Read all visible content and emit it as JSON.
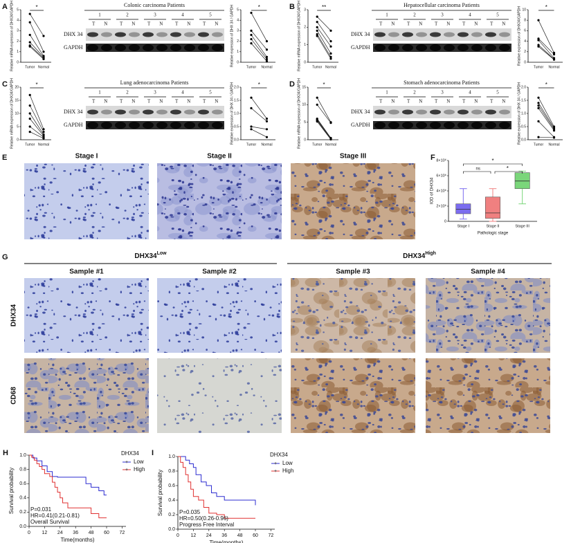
{
  "panels": [
    {
      "label": "A",
      "title": "Colonic carcinoma Patients",
      "lanes": [
        "1",
        "2",
        "3",
        "4",
        "5"
      ],
      "lane_labels": [
        "T",
        "N"
      ],
      "rows": [
        "DHX 34",
        "GAPDH"
      ],
      "plots": [
        {
          "ylabel": "Relative mRNA expression of DHX34/GAPDH",
          "groups": [
            "Tumor",
            "Normal"
          ],
          "sig": "*",
          "ylim": [
            0,
            5
          ],
          "yticks": [
            0,
            1,
            2,
            3,
            4,
            5
          ],
          "tumor": [
            4.6,
            3.8,
            2.6,
            1.9,
            1.6,
            1.5
          ],
          "normal": [
            2.5,
            1.0,
            0.6,
            0.5,
            0.4,
            0.3
          ]
        },
        {
          "ylabel": "Relative expression of DHX 34 / GAPDH",
          "groups": [
            "Tumor",
            "Normal"
          ],
          "sig": "*",
          "ylim": [
            0,
            5
          ],
          "yticks": [
            0,
            1,
            2,
            3,
            4,
            5
          ],
          "tumor": [
            4.7,
            3.0,
            2.6,
            2.2,
            1.8
          ],
          "normal": [
            2.0,
            1.2,
            0.5,
            0.3,
            0.1
          ]
        }
      ]
    },
    {
      "label": "B",
      "title": "Hepatocellular carcinoma Patients",
      "lanes": [
        "1",
        "2",
        "3",
        "4",
        "5"
      ],
      "lane_labels": [
        "T",
        "N"
      ],
      "rows": [
        "DHX 34",
        "GAPDH"
      ],
      "plots": [
        {
          "ylabel": "Relative mRNA expression of DHX34/GAPDH",
          "groups": [
            "Tumor",
            "Normal"
          ],
          "sig": "**",
          "ylim": [
            0,
            3
          ],
          "yticks": [
            0,
            1,
            2,
            3
          ],
          "tumor": [
            2.6,
            2.3,
            2.0,
            1.8,
            1.6,
            1.5
          ],
          "normal": [
            1.8,
            1.2,
            0.9,
            0.5,
            0.3,
            0.2
          ]
        },
        {
          "ylabel": "Relative expression of DHX34/GAPDH",
          "groups": [
            "Tumor",
            "Normal"
          ],
          "sig": "*",
          "ylim": [
            0,
            10
          ],
          "yticks": [
            0,
            2,
            4,
            6,
            8,
            10
          ],
          "tumor": [
            8,
            4.5,
            4.2,
            3.3,
            3
          ],
          "normal": [
            1.8,
            1.5,
            0.8,
            0.6,
            0.5
          ]
        }
      ]
    },
    {
      "label": "C",
      "title": "Lung adenocarcinoma Patients",
      "lanes": [
        "1",
        "2",
        "3",
        "4",
        "5"
      ],
      "lane_labels": [
        "T",
        "N"
      ],
      "rows": [
        "DHX 34",
        "GAPDH"
      ],
      "plots": [
        {
          "ylabel": "Relative mRNA expression of DHX34/GAPDH",
          "groups": [
            "Tumor",
            "Normal"
          ],
          "sig": "*",
          "ylim": [
            0,
            20
          ],
          "yticks": [
            0,
            5,
            10,
            15,
            20
          ],
          "tumor": [
            17,
            13,
            10,
            8,
            5,
            3
          ],
          "normal": [
            4,
            3,
            2,
            1.5,
            1,
            0.5
          ]
        },
        {
          "ylabel": "Relative expression of DHX 34 / GAPDH",
          "groups": [
            "Tumor",
            "Normal"
          ],
          "sig": "*",
          "ylim": [
            0,
            2
          ],
          "yticks": [
            {
              "value": 0,
              "label": "0.0"
            },
            {
              "value": 0.5,
              "label": "0.5"
            },
            {
              "value": 1,
              "label": "1.0"
            },
            {
              "value": 1.5,
              "label": "1.5"
            },
            {
              "value": 2,
              "label": "2.0"
            }
          ],
          "tumor": [
            1.6,
            1.2,
            0.5,
            0.4
          ],
          "normal": [
            0.8,
            0.7,
            0.4,
            0.1
          ]
        }
      ]
    },
    {
      "label": "D",
      "title": "Stomach adenocarcinoma Patients",
      "lanes": [
        "1",
        "2",
        "3",
        "4",
        "5"
      ],
      "lane_labels": [
        "T",
        "N"
      ],
      "rows": [
        "DHX 34",
        "GAPDH"
      ],
      "plots": [
        {
          "ylabel": "Relative mRNA expression of DHX34/GAPDH",
          "groups": [
            "Tumor",
            "Normal"
          ],
          "sig": "*",
          "ylim": [
            0,
            15
          ],
          "yticks": [
            0,
            5,
            10,
            15
          ],
          "tumor": [
            12,
            10,
            6,
            5.8,
            5.5,
            5.2
          ],
          "normal": [
            5,
            4.8,
            0.5,
            0.3,
            0.2,
            0.1
          ]
        },
        {
          "ylabel": "Relative expression of DHX 34 / GAPDH",
          "groups": [
            "Tumor",
            "Normal"
          ],
          "sig": "*",
          "ylim": [
            0,
            2
          ],
          "yticks": [
            {
              "value": 0,
              "label": "0.0"
            },
            {
              "value": 0.5,
              "label": "0.5"
            },
            {
              "value": 1,
              "label": "1.0"
            },
            {
              "value": 1.5,
              "label": "1.5"
            },
            {
              "value": 2,
              "label": "2.0"
            }
          ],
          "tumor": [
            1.6,
            1.4,
            1.3,
            1.2,
            0.7,
            0.1
          ],
          "normal": [
            0.5,
            0.45,
            0.4,
            0.35,
            0.1,
            0.08
          ]
        }
      ]
    }
  ],
  "histology": {
    "label": "E",
    "stages": [
      "Stage I",
      "Stage II",
      "Stage III"
    ]
  },
  "boxplot": {
    "label": "F",
    "type": "box",
    "ylabel": "IOD of DHX34",
    "xlabel": "Pathologic stage",
    "categories": [
      "Stage I",
      "Stage II",
      "Stage III"
    ],
    "colors": [
      "#7b6cf0",
      "#f08080",
      "#7ad67a"
    ],
    "ylim": [
      0,
      8000000
    ],
    "yticks": [
      {
        "value": 0,
        "label": "0"
      },
      {
        "value": 2000000,
        "label": "2×10⁶"
      },
      {
        "value": 4000000,
        "label": "4×10⁶"
      },
      {
        "value": 6000000,
        "label": "6×10⁶"
      },
      {
        "value": 8000000,
        "label": "8×10⁶"
      }
    ],
    "values": [
      [
        300000,
        1000000,
        1600000,
        2300000,
        4300000
      ],
      [
        0,
        400000,
        1100000,
        3200000,
        4300000
      ],
      [
        2300000,
        4300000,
        5300000,
        6400000,
        6600000
      ]
    ],
    "significance": [
      "ns",
      "*",
      "*"
    ]
  },
  "ihc": {
    "label": "G",
    "groups": [
      {
        "name": "DHX34",
        "sup": "Low"
      },
      {
        "name": "DHX34",
        "sup": "High"
      }
    ],
    "samples": [
      "Sample #1",
      "Sample #2",
      "Sample #3",
      "Sample #4"
    ],
    "rows": [
      "DHX34",
      "CD68"
    ]
  },
  "survival": [
    {
      "label": "H",
      "legend_title": "DHX34",
      "ylabel": "Survival probability",
      "xlabel": "Time(months)",
      "xlim": [
        0,
        75
      ],
      "xticks": [
        0,
        12,
        24,
        36,
        48,
        60,
        72
      ],
      "ylim": [
        0,
        1
      ],
      "yticks": [
        {
          "value": 0,
          "label": "0.0"
        },
        {
          "value": 0.2,
          "label": "0.2"
        },
        {
          "value": 0.4,
          "label": "0.4"
        },
        {
          "value": 0.6,
          "label": "0.6"
        },
        {
          "value": 0.8,
          "label": "0.8"
        },
        {
          "value": 1,
          "label": "1.0"
        }
      ],
      "annotations": [
        "P=0.031",
        "HR=0.41(0.21-0.81)",
        "Overall Survival"
      ],
      "series": [
        {
          "name": "Low",
          "color": "#2b2bd0",
          "x": [
            0,
            3,
            6,
            10,
            14,
            18,
            22,
            28,
            40,
            44,
            48,
            54,
            58,
            60
          ],
          "y": [
            1,
            0.96,
            0.92,
            0.85,
            0.77,
            0.7,
            0.69,
            0.69,
            0.69,
            0.6,
            0.55,
            0.5,
            0.44,
            0.44
          ]
        },
        {
          "name": "High",
          "color": "#e03030",
          "x": [
            0,
            2,
            4,
            6,
            8,
            10,
            12,
            16,
            18,
            20,
            22,
            24,
            26,
            30,
            36,
            48,
            54,
            60
          ],
          "y": [
            1,
            0.97,
            0.93,
            0.88,
            0.84,
            0.8,
            0.74,
            0.7,
            0.62,
            0.55,
            0.48,
            0.4,
            0.33,
            0.26,
            0.26,
            0.18,
            0.12,
            0.12
          ]
        }
      ]
    },
    {
      "label": "I",
      "legend_title": "DHX34",
      "ylabel": "Survival probability",
      "xlabel": "Time(months)",
      "xlim": [
        0,
        75
      ],
      "xticks": [
        0,
        12,
        24,
        36,
        48,
        60,
        72
      ],
      "ylim": [
        0,
        1
      ],
      "yticks": [
        {
          "value": 0,
          "label": "0.0"
        },
        {
          "value": 0.2,
          "label": "0.2"
        },
        {
          "value": 0.4,
          "label": "0.4"
        },
        {
          "value": 0.6,
          "label": "0.6"
        },
        {
          "value": 0.8,
          "label": "0.8"
        },
        {
          "value": 1,
          "label": "1.0"
        }
      ],
      "annotations": [
        "P=0.035",
        "HR=0.50(0.26-0.96)",
        "Progress Free Interval"
      ],
      "series": [
        {
          "name": "Low",
          "color": "#2b2bd0",
          "x": [
            0,
            6,
            9,
            12,
            14,
            18,
            22,
            26,
            30,
            36,
            42,
            48,
            60
          ],
          "y": [
            1,
            0.95,
            0.9,
            0.85,
            0.75,
            0.65,
            0.6,
            0.5,
            0.45,
            0.4,
            0.4,
            0.4,
            0.33
          ]
        },
        {
          "name": "High",
          "color": "#e03030",
          "x": [
            0,
            2,
            4,
            6,
            8,
            10,
            12,
            16,
            20,
            24,
            30,
            36,
            60
          ],
          "y": [
            1,
            0.92,
            0.85,
            0.75,
            0.65,
            0.55,
            0.45,
            0.4,
            0.3,
            0.22,
            0.2,
            0.15,
            0.15
          ]
        }
      ]
    }
  ]
}
